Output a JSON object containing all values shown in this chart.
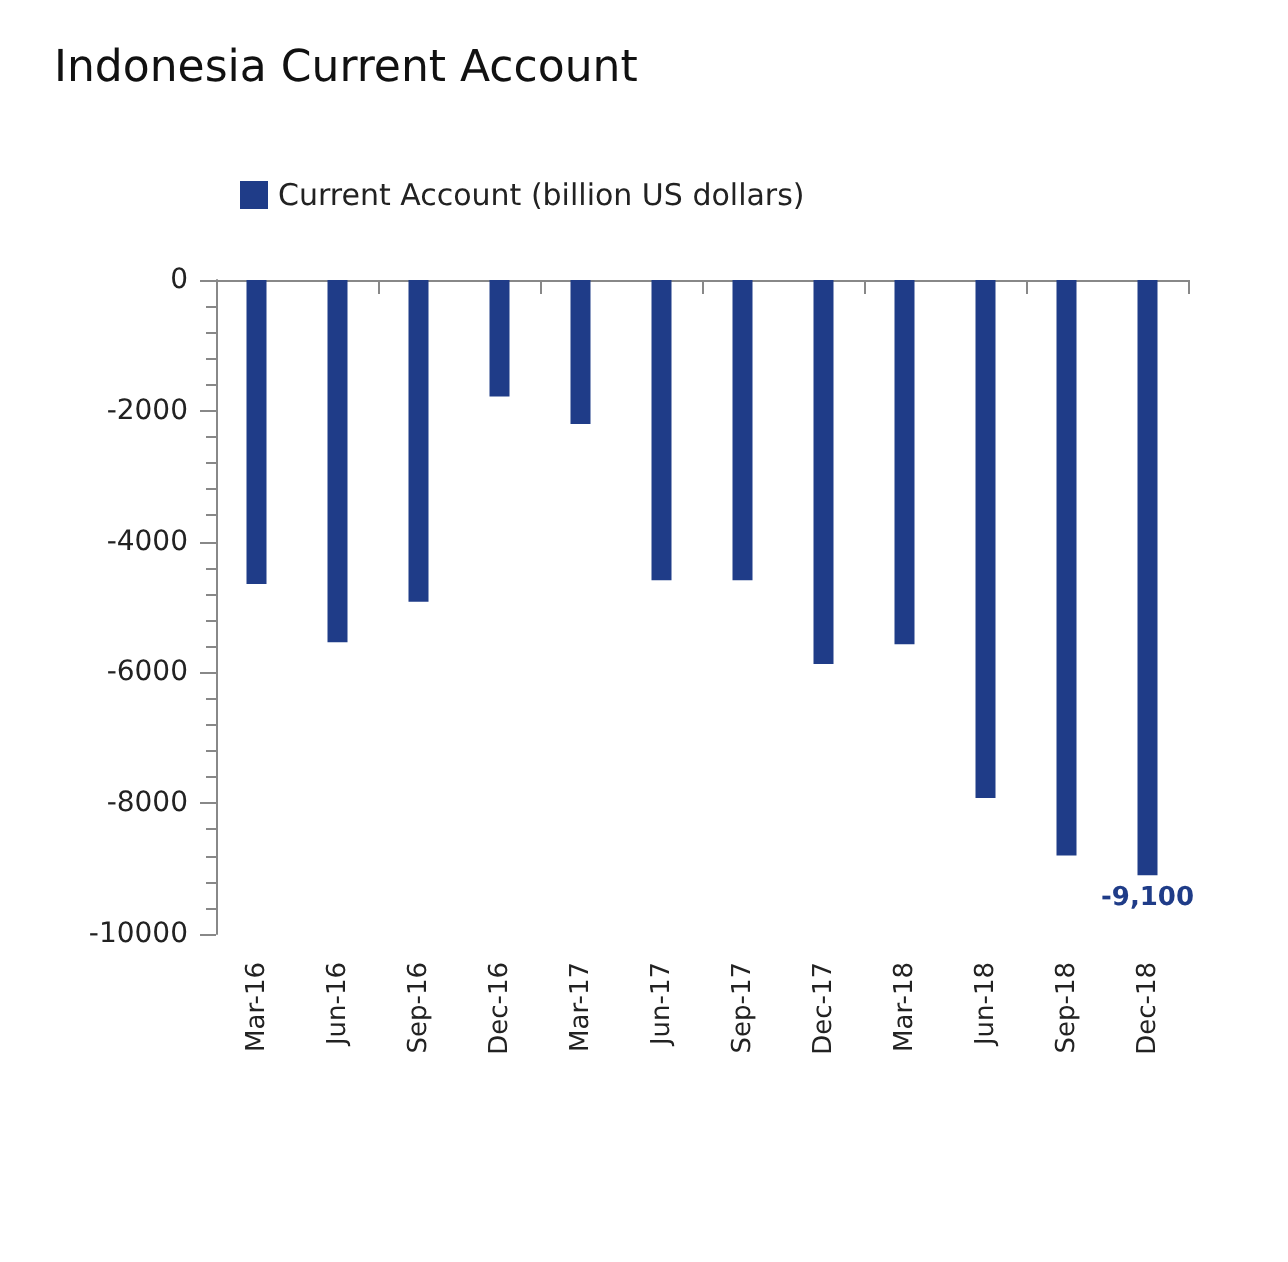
{
  "chart_data": {
    "type": "bar",
    "title": "Indonesia Current Account",
    "categories": [
      "Mar-16",
      "Jun-16",
      "Sep-16",
      "Dec-16",
      "Mar-17",
      "Jun-17",
      "Sep-17",
      "Dec-17",
      "Mar-18",
      "Jun-18",
      "Sep-18",
      "Dec-18"
    ],
    "series": [
      {
        "name": "Current Account (billion US dollars)",
        "color": "#1f3c88",
        "values": [
          -4650,
          -5540,
          -4920,
          -1780,
          -2200,
          -4590,
          -4590,
          -5870,
          -5570,
          -7920,
          -8800,
          -9100
        ],
        "value_labels": [
          null,
          null,
          null,
          null,
          null,
          null,
          null,
          null,
          null,
          null,
          null,
          "-9,100"
        ]
      }
    ],
    "ylim": [
      -10000,
      0
    ],
    "yticks": [
      -10000,
      -8000,
      -6000,
      -4000,
      -2000,
      0
    ],
    "grid": false,
    "legend": "top left"
  }
}
